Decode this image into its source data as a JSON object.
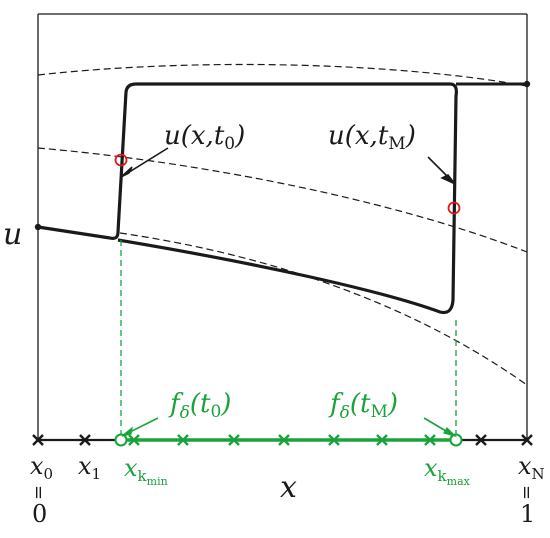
{
  "colors": {
    "curve": "#1a1a1a",
    "dashed": "#1a1a1a",
    "green": "#1aa33a",
    "marker": "#e01919",
    "axis": "#1a1a1a"
  },
  "labels": {
    "u_axis": "u",
    "x_axis": "x",
    "u_t0": {
      "base": "u(x,t",
      "sub": "0",
      "close": ")"
    },
    "u_tM": {
      "base": "u(x,t",
      "sub": "M",
      "close": ")"
    },
    "f_t0": {
      "f": "f",
      "fsub": "δ",
      "mid": "(t",
      "sub": "0",
      "close": ")"
    },
    "f_tM": {
      "f": "f",
      "fsub": "δ",
      "mid": "(t",
      "sub": "M",
      "close": ")"
    }
  },
  "grid_labels": {
    "x0": {
      "base": "x",
      "sub": "0"
    },
    "x1": {
      "base": "x",
      "sub": "1"
    },
    "xkmin": {
      "base": "x",
      "sub": "k",
      "subsub": "min"
    },
    "xkmax": {
      "base": "x",
      "sub": "k",
      "subsub": "max"
    },
    "xN": {
      "base": "x",
      "sub": "N"
    },
    "eq": "=",
    "left_value": "0",
    "right_value": "1"
  }
}
